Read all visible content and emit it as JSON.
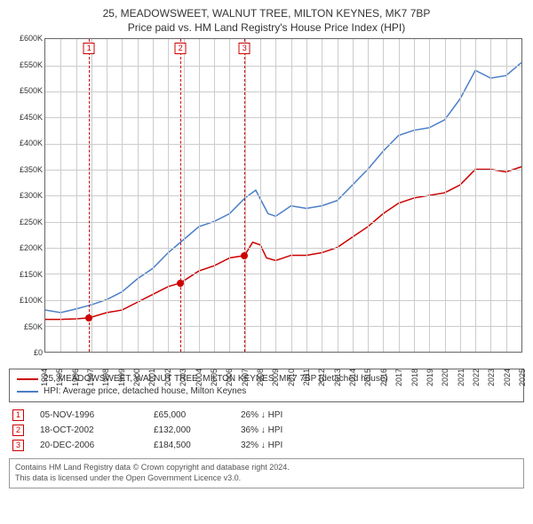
{
  "title": {
    "line1": "25, MEADOWSWEET, WALNUT TREE, MILTON KEYNES, MK7 7BP",
    "line2": "Price paid vs. HM Land Registry's House Price Index (HPI)"
  },
  "chart": {
    "type": "line",
    "background_color": "#ffffff",
    "grid_color": "#cccccc",
    "axis_color": "#666666",
    "title_fontsize": 12,
    "axis_label_fontsize": 9,
    "x": {
      "min": 1994,
      "max": 2025,
      "tick_step": 1
    },
    "y": {
      "min": 0,
      "max": 600000,
      "tick_step": 50000,
      "prefix": "£",
      "suffix_k": true
    },
    "series": [
      {
        "id": "property",
        "label": "25, MEADOWSWEET, WALNUT TREE, MILTON KEYNES, MK7 7BP (detached house)",
        "color": "#cc0000",
        "line_width": 1.5,
        "points": [
          [
            1994,
            62000
          ],
          [
            1995,
            62000
          ],
          [
            1996,
            63000
          ],
          [
            1996.85,
            65000
          ],
          [
            1998,
            75000
          ],
          [
            1999,
            80000
          ],
          [
            2000,
            95000
          ],
          [
            2001,
            110000
          ],
          [
            2002,
            125000
          ],
          [
            2002.8,
            132000
          ],
          [
            2004,
            155000
          ],
          [
            2005,
            165000
          ],
          [
            2006,
            180000
          ],
          [
            2006.97,
            184500
          ],
          [
            2007.5,
            210000
          ],
          [
            2008,
            205000
          ],
          [
            2008.4,
            180000
          ],
          [
            2009,
            175000
          ],
          [
            2010,
            185000
          ],
          [
            2011,
            185000
          ],
          [
            2012,
            190000
          ],
          [
            2013,
            200000
          ],
          [
            2014,
            220000
          ],
          [
            2015,
            240000
          ],
          [
            2016,
            265000
          ],
          [
            2017,
            285000
          ],
          [
            2018,
            295000
          ],
          [
            2019,
            300000
          ],
          [
            2020,
            305000
          ],
          [
            2021,
            320000
          ],
          [
            2022,
            350000
          ],
          [
            2023,
            350000
          ],
          [
            2024,
            345000
          ],
          [
            2025,
            355000
          ]
        ]
      },
      {
        "id": "hpi",
        "label": "HPI: Average price, detached house, Milton Keynes",
        "color": "#4a7ec8",
        "line_width": 1.5,
        "points": [
          [
            1994,
            80000
          ],
          [
            1995,
            75000
          ],
          [
            1996,
            82000
          ],
          [
            1997,
            90000
          ],
          [
            1998,
            100000
          ],
          [
            1999,
            115000
          ],
          [
            2000,
            140000
          ],
          [
            2001,
            160000
          ],
          [
            2002,
            190000
          ],
          [
            2003,
            215000
          ],
          [
            2004,
            240000
          ],
          [
            2005,
            250000
          ],
          [
            2006,
            265000
          ],
          [
            2007,
            295000
          ],
          [
            2007.7,
            310000
          ],
          [
            2008.5,
            265000
          ],
          [
            2009,
            260000
          ],
          [
            2010,
            280000
          ],
          [
            2011,
            275000
          ],
          [
            2012,
            280000
          ],
          [
            2013,
            290000
          ],
          [
            2014,
            320000
          ],
          [
            2015,
            350000
          ],
          [
            2016,
            385000
          ],
          [
            2017,
            415000
          ],
          [
            2018,
            425000
          ],
          [
            2019,
            430000
          ],
          [
            2020,
            445000
          ],
          [
            2021,
            485000
          ],
          [
            2022,
            540000
          ],
          [
            2023,
            525000
          ],
          [
            2024,
            530000
          ],
          [
            2025,
            555000
          ]
        ]
      }
    ],
    "event_lines": {
      "color": "#cc0000",
      "dash": "2,3",
      "events": [
        {
          "n": "1",
          "x": 1996.85,
          "marker_y": 65000
        },
        {
          "n": "2",
          "x": 2002.8,
          "marker_y": 132000
        },
        {
          "n": "3",
          "x": 2006.97,
          "marker_y": 184500
        }
      ]
    }
  },
  "legend": {
    "items": [
      {
        "series": "property"
      },
      {
        "series": "hpi"
      }
    ]
  },
  "events_table": [
    {
      "n": "1",
      "date": "05-NOV-1996",
      "price": "£65,000",
      "diff": "26% ↓ HPI"
    },
    {
      "n": "2",
      "date": "18-OCT-2002",
      "price": "£132,000",
      "diff": "36% ↓ HPI"
    },
    {
      "n": "3",
      "date": "20-DEC-2006",
      "price": "£184,500",
      "diff": "32% ↓ HPI"
    }
  ],
  "attribution": {
    "line1": "Contains HM Land Registry data © Crown copyright and database right 2024.",
    "line2": "This data is licensed under the Open Government Licence v3.0."
  }
}
